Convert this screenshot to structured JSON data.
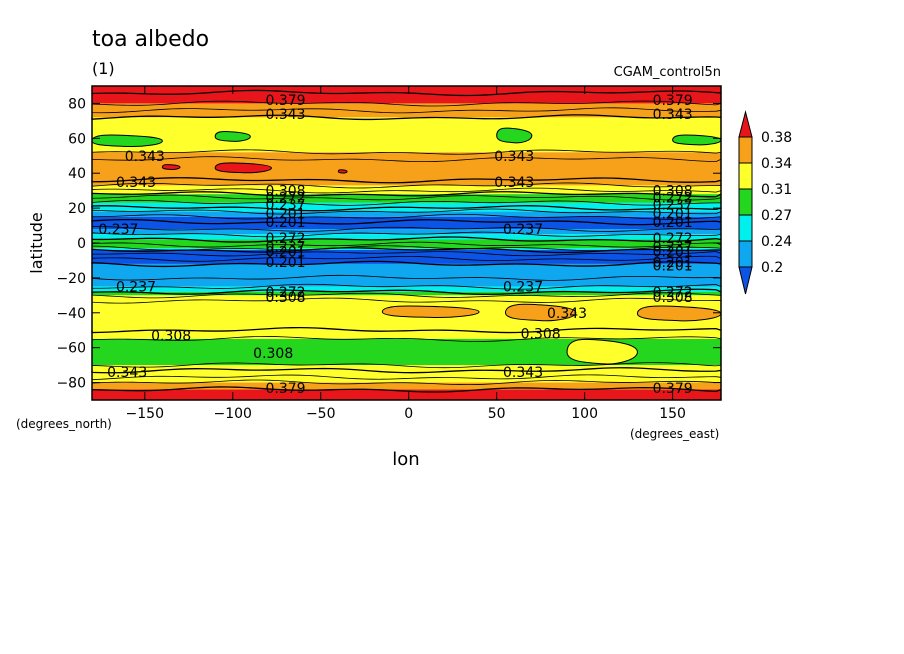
{
  "chart_data": {
    "type": "heatmap",
    "title": "toa albedo",
    "subtitle": "(1)",
    "dataset_label": "CGAM_control5n",
    "xlabel": "lon",
    "ylabel": "latitude",
    "x_units": "(degrees_east)",
    "y_units": "(degrees_north)",
    "xlim": [
      -180,
      177.5
    ],
    "ylim": [
      -90,
      90
    ],
    "x_ticks": [
      -150,
      -100,
      -50,
      0,
      50,
      100,
      150
    ],
    "y_ticks": [
      80,
      60,
      40,
      20,
      0,
      -20,
      -40,
      -60,
      -80
    ],
    "x_tick_labels": [
      "−150",
      "−100",
      "−50",
      "0",
      "50",
      "100",
      "150"
    ],
    "y_tick_labels": [
      "80",
      "60",
      "40",
      "20",
      "0",
      "−20",
      "−40",
      "−60",
      "−80"
    ],
    "colorbar": {
      "labels": [
        "0.38",
        "0.34",
        "0.31",
        "0.27",
        "0.24",
        "0.2"
      ],
      "bins": [
        {
          "label": "> 0.38",
          "color": "#e8161a"
        },
        {
          "label": "0.343-0.379",
          "color": "#f7a11a"
        },
        {
          "label": "0.308-0.343",
          "color": "#ffff2c"
        },
        {
          "label": "0.272-0.308",
          "color": "#24d61e"
        },
        {
          "label": "0.237-0.272",
          "color": "#00f0ee"
        },
        {
          "label": "0.201-0.237",
          "color": "#0ea7f0"
        },
        {
          "label": "< 0.201",
          "color": "#0b54e6"
        }
      ]
    },
    "bands": [
      {
        "lat": [
          80,
          90
        ],
        "color": "#e8161a"
      },
      {
        "lat": [
          72,
          80
        ],
        "color": "#f7a11a"
      },
      {
        "lat": [
          52,
          72
        ],
        "color": "#ffff2c"
      },
      {
        "lat": [
          33,
          52
        ],
        "color": "#f7a11a"
      },
      {
        "lat": [
          28,
          33
        ],
        "color": "#ffff2c"
      },
      {
        "lat": [
          23,
          28
        ],
        "color": "#24d61e"
      },
      {
        "lat": [
          18,
          23
        ],
        "color": "#00f0ee"
      },
      {
        "lat": [
          15,
          18
        ],
        "color": "#0ea7f0"
      },
      {
        "lat": [
          8,
          15
        ],
        "color": "#0b54e6"
      },
      {
        "lat": [
          5,
          8
        ],
        "color": "#0ea7f0"
      },
      {
        "lat": [
          2,
          5
        ],
        "color": "#00f0ee"
      },
      {
        "lat": [
          -3,
          2
        ],
        "color": "#24d61e"
      },
      {
        "lat": [
          -4,
          -3
        ],
        "color": "#00f0ee"
      },
      {
        "lat": [
          -12,
          -4
        ],
        "color": "#0b54e6"
      },
      {
        "lat": [
          -25,
          -12
        ],
        "color": "#0ea7f0"
      },
      {
        "lat": [
          -28,
          -25
        ],
        "color": "#00f0ee"
      },
      {
        "lat": [
          -30,
          -28
        ],
        "color": "#24d61e"
      },
      {
        "lat": [
          -55,
          -30
        ],
        "color": "#ffff2c"
      },
      {
        "lat": [
          -70,
          -55
        ],
        "color": "#24d61e"
      },
      {
        "lat": [
          -80,
          -70
        ],
        "color": "#ffff2c"
      },
      {
        "lat": [
          -84,
          -80
        ],
        "color": "#f7a11a"
      },
      {
        "lat": [
          -90,
          -84
        ],
        "color": "#e8161a"
      }
    ],
    "patches": [
      {
        "lon": [
          -180,
          -140
        ],
        "lat": [
          55,
          62
        ],
        "color": "#24d61e"
      },
      {
        "lon": [
          -110,
          -90
        ],
        "lat": [
          58,
          64
        ],
        "color": "#24d61e"
      },
      {
        "lon": [
          50,
          70
        ],
        "lat": [
          57,
          66
        ],
        "color": "#24d61e"
      },
      {
        "lon": [
          150,
          177.5
        ],
        "lat": [
          56,
          62
        ],
        "color": "#24d61e"
      },
      {
        "lon": [
          -140,
          -130
        ],
        "lat": [
          42,
          45
        ],
        "color": "#e8161a"
      },
      {
        "lon": [
          -110,
          -78
        ],
        "lat": [
          40,
          46
        ],
        "color": "#e8161a"
      },
      {
        "lon": [
          -40,
          -35
        ],
        "lat": [
          40,
          42
        ],
        "color": "#e8161a"
      },
      {
        "lon": [
          -15,
          40
        ],
        "lat": [
          -43,
          -36
        ],
        "color": "#f7a11a"
      },
      {
        "lon": [
          55,
          95
        ],
        "lat": [
          -45,
          -35
        ],
        "color": "#f7a11a"
      },
      {
        "lon": [
          130,
          177.5
        ],
        "lat": [
          -45,
          -36
        ],
        "color": "#f7a11a"
      },
      {
        "lon": [
          90,
          130
        ],
        "lat": [
          -70,
          -55
        ],
        "color": "#ffff2c"
      }
    ],
    "contour_lines": [
      86,
      80,
      76,
      72,
      52,
      48,
      36,
      33,
      30,
      28,
      26,
      23,
      20,
      18,
      15,
      12,
      8,
      5,
      2,
      -1,
      -3,
      -4,
      -6,
      -9,
      -12,
      -20,
      -25,
      -28,
      -30,
      -33,
      -50,
      -55,
      -70,
      -73,
      -77,
      -80,
      -84
    ],
    "contour_labels": [
      {
        "text": "0.379",
        "lon": -70,
        "lat": 82
      },
      {
        "text": "0.379",
        "lon": 150,
        "lat": 82
      },
      {
        "text": "0.343",
        "lon": -70,
        "lat": 74
      },
      {
        "text": "0.343",
        "lon": 150,
        "lat": 74
      },
      {
        "text": "0.343",
        "lon": -150,
        "lat": 50
      },
      {
        "text": "0.343",
        "lon": 60,
        "lat": 50
      },
      {
        "text": "0.343",
        "lon": -155,
        "lat": 35
      },
      {
        "text": "0.343",
        "lon": 60,
        "lat": 35
      },
      {
        "text": "0.308",
        "lon": -70,
        "lat": 30
      },
      {
        "text": "0.308",
        "lon": 150,
        "lat": 30
      },
      {
        "text": "0.272",
        "lon": -70,
        "lat": 26
      },
      {
        "text": "0.272",
        "lon": 150,
        "lat": 26
      },
      {
        "text": "0.237",
        "lon": -70,
        "lat": 22
      },
      {
        "text": "0.237",
        "lon": 150,
        "lat": 22
      },
      {
        "text": "0.201",
        "lon": -70,
        "lat": 17
      },
      {
        "text": "0.201",
        "lon": 150,
        "lat": 17
      },
      {
        "text": "0.201",
        "lon": -70,
        "lat": 12
      },
      {
        "text": "0.201",
        "lon": 150,
        "lat": 12
      },
      {
        "text": "0.237",
        "lon": -165,
        "lat": 8
      },
      {
        "text": "0.237",
        "lon": 65,
        "lat": 8
      },
      {
        "text": "0.272",
        "lon": -70,
        "lat": 3
      },
      {
        "text": "0.272",
        "lon": 150,
        "lat": 3
      },
      {
        "text": "0.237",
        "lon": -70,
        "lat": -2
      },
      {
        "text": "0.237",
        "lon": 150,
        "lat": -2
      },
      {
        "text": "0.201",
        "lon": -70,
        "lat": -5
      },
      {
        "text": "0.201",
        "lon": 150,
        "lat": -5
      },
      {
        "text": "0.201",
        "lon": -70,
        "lat": -11
      },
      {
        "text": "0.201",
        "lon": 150,
        "lat": -11
      },
      {
        "text": "0.201",
        "lon": 150,
        "lat": -13
      },
      {
        "text": "0.237",
        "lon": -155,
        "lat": -25
      },
      {
        "text": "0.237",
        "lon": 65,
        "lat": -25
      },
      {
        "text": "0.272",
        "lon": -70,
        "lat": -28
      },
      {
        "text": "0.272",
        "lon": 150,
        "lat": -28
      },
      {
        "text": "0.308",
        "lon": -70,
        "lat": -31
      },
      {
        "text": "0.308",
        "lon": 150,
        "lat": -31
      },
      {
        "text": "0.343",
        "lon": 90,
        "lat": -40
      },
      {
        "text": "0.308",
        "lon": -135,
        "lat": -53
      },
      {
        "text": "0.308",
        "lon": 75,
        "lat": -52
      },
      {
        "text": "0.308",
        "lon": -77,
        "lat": -63
      },
      {
        "text": "0.343",
        "lon": -160,
        "lat": -74
      },
      {
        "text": "0.343",
        "lon": 65,
        "lat": -74
      },
      {
        "text": "0.379",
        "lon": -70,
        "lat": -83
      },
      {
        "text": "0.379",
        "lon": 150,
        "lat": -83
      }
    ]
  }
}
